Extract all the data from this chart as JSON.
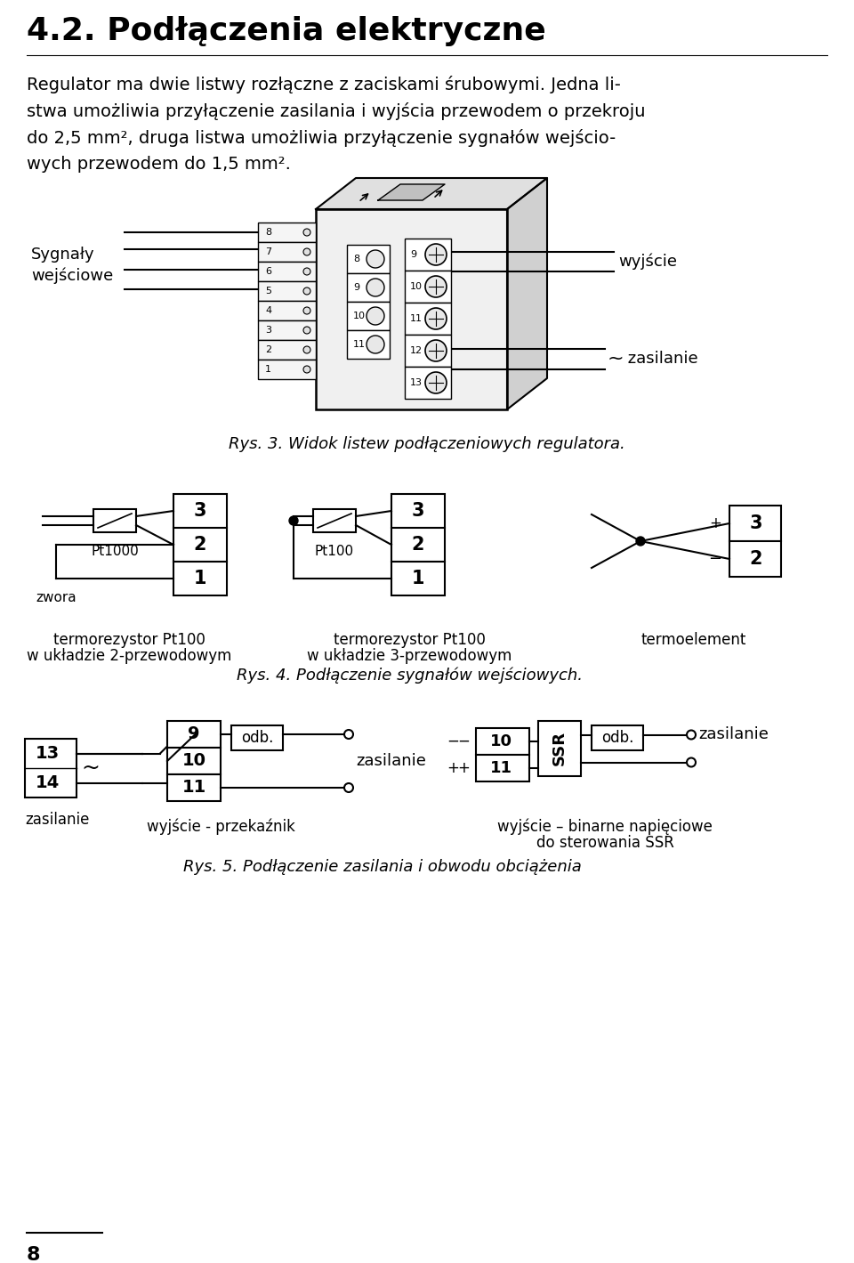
{
  "title": "4.2. Podłączenia elektryczne",
  "para_lines": [
    "Regulator ma dwie listwy rozłączne z zaciskami śrubowymi. Jedna li-",
    "stwa umożliwia przyłączenie zasilania i wyjścia przewodem o przekroju",
    "do 2,5 mm², druga listwa umożliwia przyłączenie sygnałów wejścio-",
    "wych przewodem do 1,5 mm²."
  ],
  "fig3_caption": "Rys. 3. Widok listew podłączeniowych regulatora.",
  "fig4_caption": "Rys. 4. Podłączenie sygnałów wejściowych.",
  "fig5_caption": "Rys. 5. Podłączenie zasilania i obwodu obciążenia",
  "bg_color": "#ffffff",
  "text_color": "#000000",
  "page_number": "8"
}
